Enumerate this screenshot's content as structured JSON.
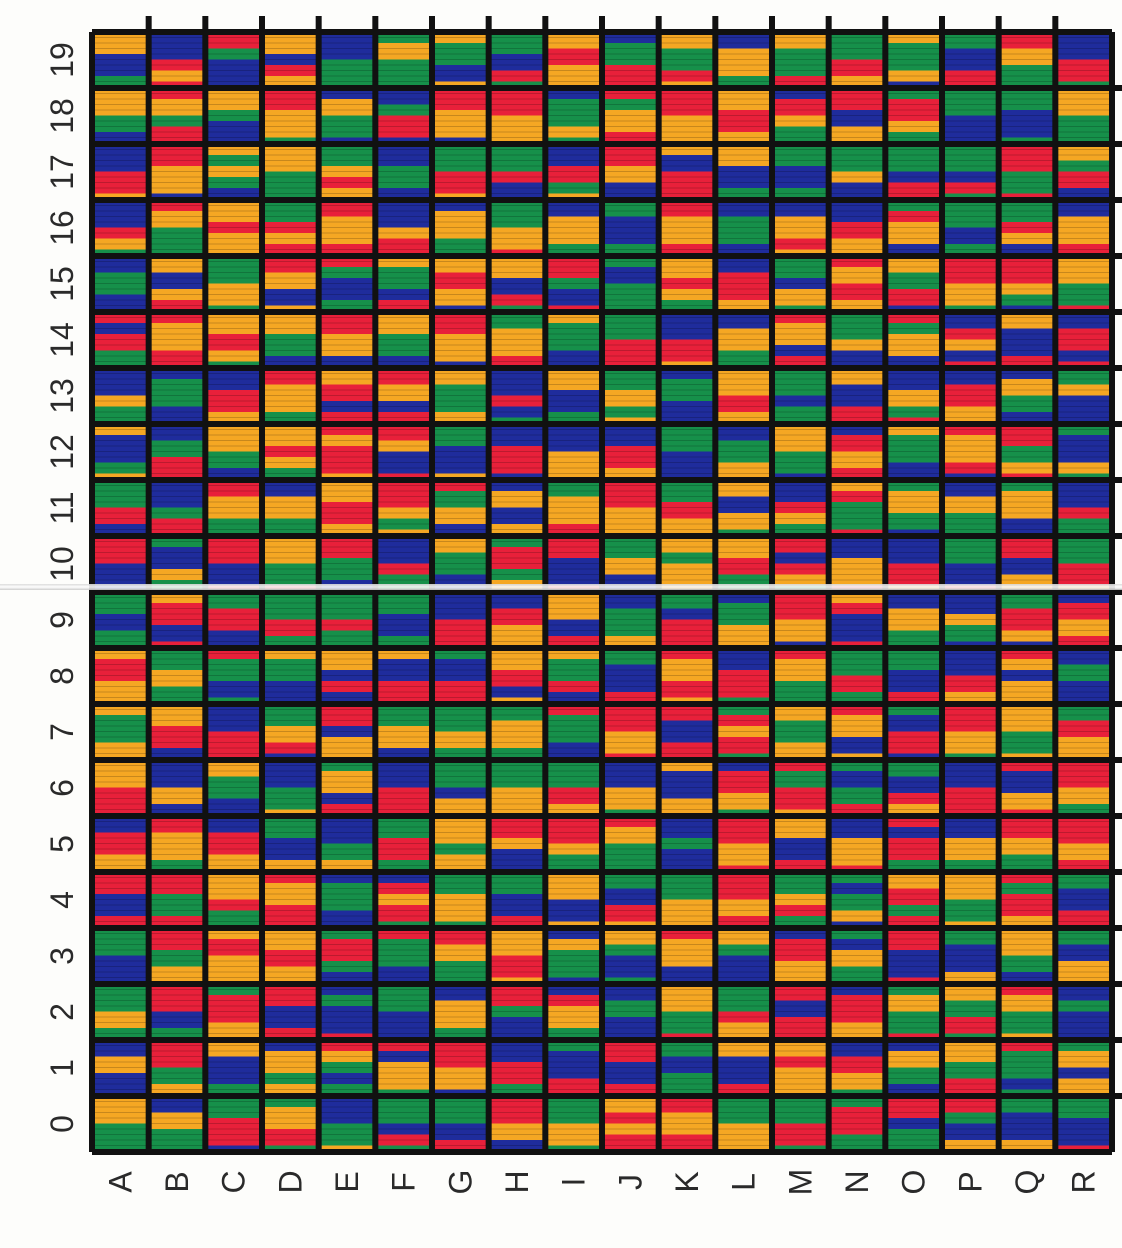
{
  "colors": {
    "red": "#e8203a",
    "yellow": "#f5a723",
    "green": "#16904a",
    "blue": "#1f2c9c",
    "grid": "#111111",
    "background": "#fdfdfb"
  },
  "row_labels": [
    "19",
    "18",
    "17",
    "16",
    "15",
    "14",
    "13",
    "12",
    "11",
    "10",
    "9",
    "8",
    "7",
    "6",
    "5",
    "4",
    "3",
    "2",
    "1",
    "0"
  ],
  "column_labels": [
    "A",
    "B",
    "C",
    "D",
    "E",
    "F",
    "G",
    "H",
    "I",
    "J",
    "K",
    "L",
    "M",
    "N",
    "O",
    "P",
    "Q",
    "R"
  ],
  "palette_order": [
    "red",
    "yellow",
    "green",
    "blue"
  ]
}
